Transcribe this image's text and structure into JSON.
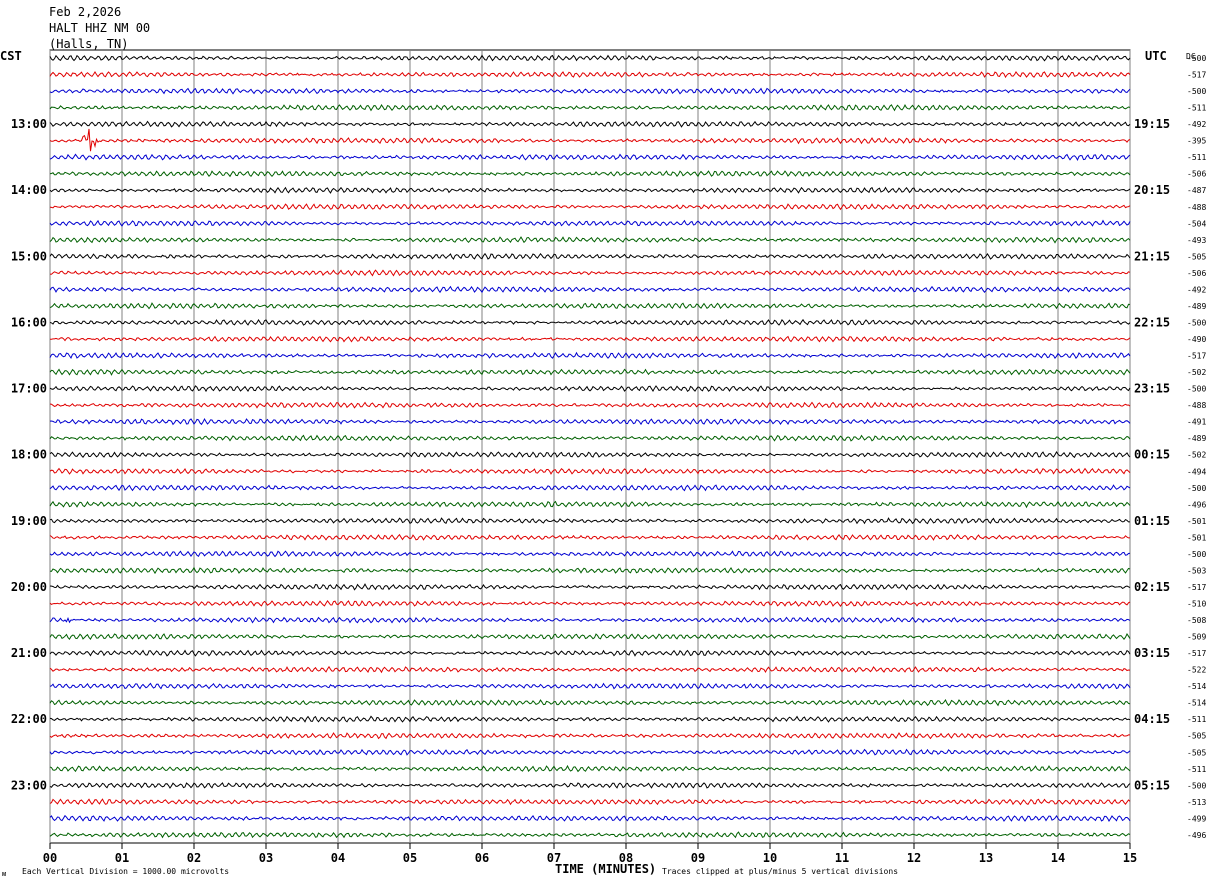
{
  "header": {
    "date": "Feb 2,2026",
    "station": "HALT HHZ NM 00",
    "location": "(Halls, TN)"
  },
  "labels": {
    "left_tz": "CST",
    "right_tz": "UTC",
    "dc": "DC",
    "xlabel": "TIME (MINUTES)",
    "scale_note": "Each Vertical Division = 1000.00 microvolts",
    "clip_note": "Traces clipped at plus/minus 5 vertical divisions",
    "corner_mark": "ᴍ"
  },
  "chart_data": {
    "type": "line",
    "title": "HALT HHZ NM 00",
    "xlabel": "TIME (MINUTES)",
    "xlim": [
      0,
      15
    ],
    "x_ticks": [
      "00",
      "01",
      "02",
      "03",
      "04",
      "05",
      "06",
      "07",
      "08",
      "09",
      "10",
      "11",
      "12",
      "13",
      "14",
      "15"
    ],
    "left_time_labels": [
      "13:00",
      "14:00",
      "15:00",
      "16:00",
      "17:00",
      "18:00",
      "19:00",
      "20:00",
      "21:00",
      "22:00",
      "23:00"
    ],
    "right_time_labels": [
      "19:15",
      "20:15",
      "21:15",
      "22:15",
      "23:15",
      "00:15",
      "01:15",
      "02:15",
      "03:15",
      "04:15",
      "05:15"
    ],
    "first_labeled_trace_index": 4,
    "trace_colors": [
      "#000000",
      "#e00000",
      "#0000d0",
      "#006000"
    ],
    "dc_offsets": [
      -500,
      -517,
      -500,
      -511,
      -492,
      -395,
      -511,
      -506,
      -487,
      -488,
      -504,
      -493,
      -505,
      -506,
      -492,
      -489,
      -500,
      -490,
      -517,
      -502,
      -500,
      -488,
      -491,
      -489,
      -502,
      -494,
      -500,
      -496,
      -501,
      -501,
      -500,
      -503,
      -517,
      -510,
      -508,
      -509,
      -517,
      -522,
      -514,
      -514,
      -511,
      -505,
      -505,
      -511,
      -500,
      -513,
      -499,
      -496
    ],
    "events": [
      {
        "trace": 5,
        "minute": 0.55,
        "amplitude": "large"
      },
      {
        "trace": 34,
        "minute": 0.3,
        "amplitude": "moderate"
      }
    ]
  }
}
